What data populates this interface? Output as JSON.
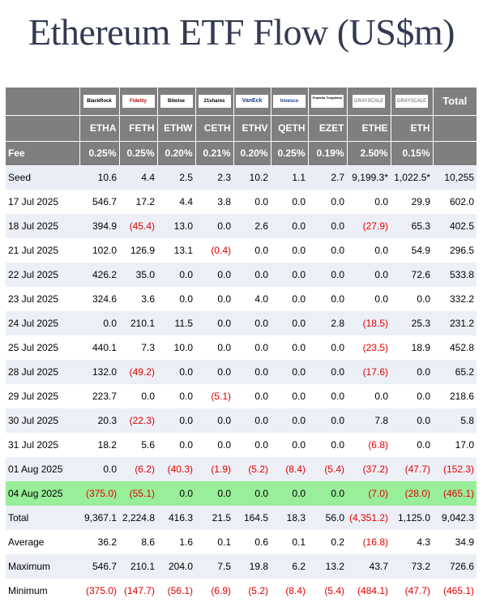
{
  "title": "Ethereum ETF Flow (US$m)",
  "colors": {
    "header_bg": "#7f7f7f",
    "negative": "#e00000",
    "highlight": "#99ee99",
    "shade": "#eceff6",
    "title": "#333a52"
  },
  "issuers": [
    "BlackRock",
    "Fidelity",
    "Bitwise",
    "21shares",
    "VanEck",
    "Invesco",
    "Franklin Templeton",
    "GRAYSCALE",
    "GRAYSCALE"
  ],
  "total_label": "Total",
  "tickers": [
    "ETHA",
    "FETH",
    "ETHW",
    "CETH",
    "ETHV",
    "QETH",
    "EZET",
    "ETHE",
    "ETH"
  ],
  "fee": {
    "label": "Fee",
    "values": [
      "0.25%",
      "0.25%",
      "0.20%",
      "0.21%",
      "0.20%",
      "0.25%",
      "0.19%",
      "2.50%",
      "0.15%",
      ""
    ]
  },
  "rows": [
    {
      "label": "Seed",
      "values": [
        "10.6",
        "4.4",
        "2.5",
        "2.3",
        "10.2",
        "1.1",
        "2.7",
        "9,199.3*",
        "1,022.5*",
        "10,255"
      ]
    },
    {
      "label": "17 Jul 2025",
      "values": [
        "546.7",
        "17.2",
        "4.4",
        "3.8",
        "0.0",
        "0.0",
        "0.0",
        "0.0",
        "29.9",
        "602.0"
      ]
    },
    {
      "label": "18 Jul 2025",
      "values": [
        "394.9",
        "(45.4)",
        "13.0",
        "0.0",
        "2.6",
        "0.0",
        "0.0",
        "(27.9)",
        "65.3",
        "402.5"
      ]
    },
    {
      "label": "21 Jul 2025",
      "values": [
        "102.0",
        "126.9",
        "13.1",
        "(0.4)",
        "0.0",
        "0.0",
        "0.0",
        "0.0",
        "54.9",
        "296.5"
      ]
    },
    {
      "label": "22 Jul 2025",
      "values": [
        "426.2",
        "35.0",
        "0.0",
        "0.0",
        "0.0",
        "0.0",
        "0.0",
        "0.0",
        "72.6",
        "533.8"
      ]
    },
    {
      "label": "23 Jul 2025",
      "values": [
        "324.6",
        "3.6",
        "0.0",
        "0.0",
        "4.0",
        "0.0",
        "0.0",
        "0.0",
        "0.0",
        "332.2"
      ]
    },
    {
      "label": "24 Jul 2025",
      "values": [
        "0.0",
        "210.1",
        "11.5",
        "0.0",
        "0.0",
        "0.0",
        "2.8",
        "(18.5)",
        "25.3",
        "231.2"
      ]
    },
    {
      "label": "25 Jul 2025",
      "values": [
        "440.1",
        "7.3",
        "10.0",
        "0.0",
        "0.0",
        "0.0",
        "0.0",
        "(23.5)",
        "18.9",
        "452.8"
      ]
    },
    {
      "label": "28 Jul 2025",
      "values": [
        "132.0",
        "(49.2)",
        "0.0",
        "0.0",
        "0.0",
        "0.0",
        "0.0",
        "(17.6)",
        "0.0",
        "65.2"
      ]
    },
    {
      "label": "29 Jul 2025",
      "values": [
        "223.7",
        "0.0",
        "0.0",
        "(5.1)",
        "0.0",
        "0.0",
        "0.0",
        "0.0",
        "0.0",
        "218.6"
      ]
    },
    {
      "label": "30 Jul 2025",
      "values": [
        "20.3",
        "(22.3)",
        "0.0",
        "0.0",
        "0.0",
        "0.0",
        "0.0",
        "7.8",
        "0.0",
        "5.8"
      ]
    },
    {
      "label": "31 Jul 2025",
      "values": [
        "18.2",
        "5.6",
        "0.0",
        "0.0",
        "0.0",
        "0.0",
        "0.0",
        "(6.8)",
        "0.0",
        "17.0"
      ]
    },
    {
      "label": "01 Aug 2025",
      "values": [
        "0.0",
        "(6.2)",
        "(40.3)",
        "(1.9)",
        "(5.2)",
        "(8.4)",
        "(5.4)",
        "(37.2)",
        "(47.7)",
        "(152.3)"
      ]
    },
    {
      "label": "04 Aug 2025",
      "values": [
        "(375.0)",
        "(55.1)",
        "0.0",
        "0.0",
        "0.0",
        "0.0",
        "0.0",
        "(7.0)",
        "(28.0)",
        "(465.1)"
      ]
    },
    {
      "label": "Total",
      "values": [
        "9,367.1",
        "2,224.8",
        "416.3",
        "21.5",
        "164.5",
        "18.3",
        "56.0",
        "(4,351.2)",
        "1,125.0",
        "9,042.3"
      ]
    },
    {
      "label": "Average",
      "values": [
        "36.2",
        "8.6",
        "1.6",
        "0.1",
        "0.6",
        "0.1",
        "0.2",
        "(16.8)",
        "4.3",
        "34.9"
      ]
    },
    {
      "label": "Maximum",
      "values": [
        "546.7",
        "210.1",
        "204.0",
        "7.5",
        "19.8",
        "6.2",
        "13.2",
        "43.7",
        "73.2",
        "726.6"
      ]
    },
    {
      "label": "Minimum",
      "values": [
        "(375.0)",
        "(147.7)",
        "(56.1)",
        "(6.9)",
        "(5.2)",
        "(8.4)",
        "(5.4)",
        "(484.1)",
        "(47.7)",
        "(465.1)"
      ]
    }
  ]
}
